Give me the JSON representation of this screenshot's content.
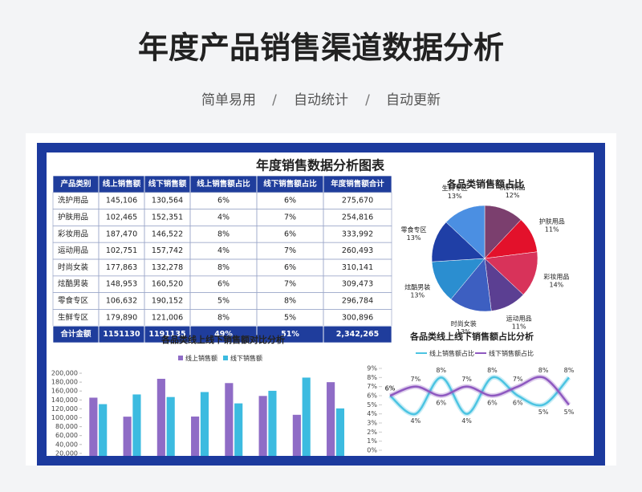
{
  "header": {
    "title": "年度产品销售渠道数据分析",
    "features": [
      "简单易用",
      "自动统计",
      "自动更新"
    ],
    "separator": "/"
  },
  "sheet_title": "年度销售数据分析图表",
  "table": {
    "columns": [
      "产品类别",
      "线上销售额",
      "线下销售额",
      "线上销售额占比",
      "线下销售额占比",
      "年度销售额合计"
    ],
    "rows": [
      [
        "洗护用品",
        "145,106",
        "130,564",
        "6%",
        "6%",
        "275,670"
      ],
      [
        "护肤用品",
        "102,465",
        "152,351",
        "4%",
        "7%",
        "254,816"
      ],
      [
        "彩妆用品",
        "187,470",
        "146,522",
        "8%",
        "6%",
        "333,992"
      ],
      [
        "运动用品",
        "102,751",
        "157,742",
        "4%",
        "7%",
        "260,493"
      ],
      [
        "时尚女装",
        "177,863",
        "132,278",
        "8%",
        "6%",
        "310,141"
      ],
      [
        "炫酷男装",
        "148,953",
        "160,520",
        "6%",
        "7%",
        "309,473"
      ],
      [
        "零食专区",
        "106,632",
        "190,152",
        "5%",
        "8%",
        "296,784"
      ],
      [
        "生鲜专区",
        "179,890",
        "121,006",
        "8%",
        "5%",
        "300,896"
      ]
    ],
    "total": [
      "合计金额",
      "1151130",
      "1191135",
      "49%",
      "51%",
      "2,342,265"
    ]
  },
  "chart_data": [
    {
      "type": "pie",
      "title": "各品类销售额占比",
      "categories": [
        "洗护用品",
        "护肤用品",
        "彩妆用品",
        "运动用品",
        "时尚女装",
        "炫酷男装",
        "零食专区",
        "生鲜专区"
      ],
      "values": [
        12,
        11,
        14,
        11,
        13,
        13,
        13,
        13
      ],
      "value_labels": [
        "12%",
        "11%",
        "14%",
        "11%",
        "13%",
        "13%",
        "13%",
        "13%"
      ],
      "colors": [
        "#7b3f6e",
        "#e3112b",
        "#d8335a",
        "#5b3f92",
        "#3d5fc1",
        "#2b8ed0",
        "#1f3fa6",
        "#4b8fe2"
      ]
    },
    {
      "type": "bar",
      "title": "各品类线上线下销售额对比分析",
      "series": [
        {
          "name": "线上销售额",
          "color": "#8f6cc6",
          "values": [
            145106,
            102465,
            187470,
            102751,
            177863,
            148953,
            106632,
            179890
          ]
        },
        {
          "name": "线下销售额",
          "color": "#3cbbe0",
          "values": [
            130564,
            152351,
            146522,
            157742,
            132278,
            160520,
            190152,
            121006
          ]
        }
      ],
      "ylim": [
        0,
        200000
      ],
      "yticks": [
        {
          "value": 20000,
          "label": "20,000"
        },
        {
          "value": 40000,
          "label": "40,000"
        },
        {
          "value": 60000,
          "label": "60,000"
        },
        {
          "value": 80000,
          "label": "80,000"
        },
        {
          "value": 100000,
          "label": "100,000"
        },
        {
          "value": 120000,
          "label": "120,000"
        },
        {
          "value": 140000,
          "label": "140,000"
        },
        {
          "value": 160000,
          "label": "160,000"
        },
        {
          "value": 180000,
          "label": "180,000"
        },
        {
          "value": 200000,
          "label": "200,000"
        }
      ]
    },
    {
      "type": "line",
      "title": "各品类线上线下销售额占比分析",
      "series": [
        {
          "name": "线上销售额占比",
          "color": "#4cc4e2",
          "values": [
            6,
            4,
            8,
            4,
            8,
            6,
            5,
            8
          ],
          "value_labels": [
            "6%",
            "4%",
            "8%",
            "4%",
            "8%",
            "6%",
            "5%",
            "8%"
          ]
        },
        {
          "name": "线下销售额占比",
          "color": "#8e58c0",
          "values": [
            6,
            7,
            6,
            7,
            6,
            7,
            8,
            5
          ],
          "value_labels": [
            "6%",
            "7%",
            "6%",
            "7%",
            "6%",
            "7%",
            "8%",
            "5%"
          ]
        }
      ],
      "ylim": [
        0,
        9
      ],
      "yticks": [
        {
          "value": 0,
          "label": "0%"
        },
        {
          "value": 1,
          "label": "1%"
        },
        {
          "value": 2,
          "label": "2%"
        },
        {
          "value": 3,
          "label": "3%"
        },
        {
          "value": 4,
          "label": "4%"
        },
        {
          "value": 5,
          "label": "5%"
        },
        {
          "value": 6,
          "label": "6%"
        },
        {
          "value": 7,
          "label": "7%"
        },
        {
          "value": 8,
          "label": "8%"
        },
        {
          "value": 9,
          "label": "9%"
        }
      ]
    }
  ]
}
